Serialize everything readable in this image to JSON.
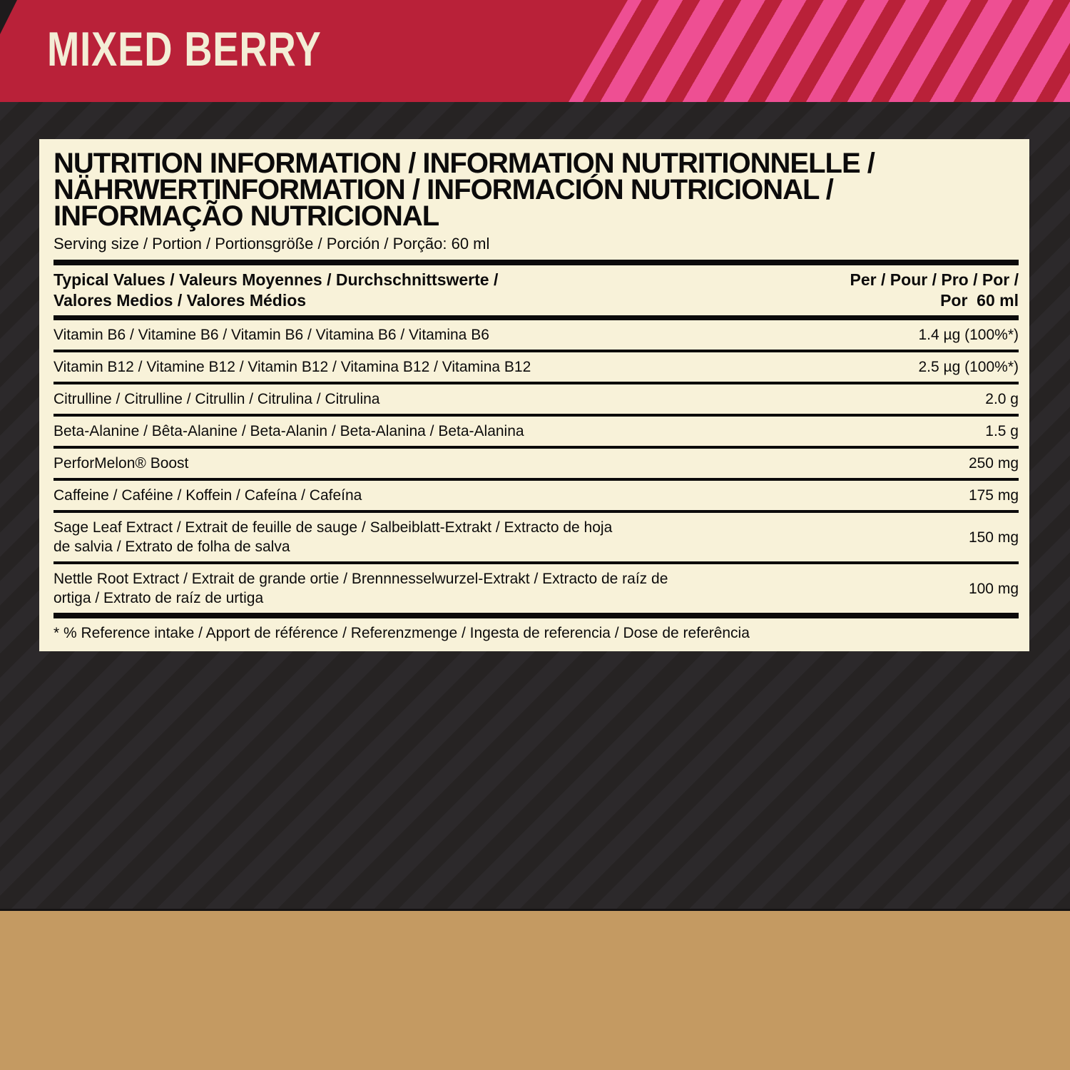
{
  "banner": {
    "flavor": "MIXED BERRY"
  },
  "colors": {
    "banner_red": "#b92139",
    "stripe_pink": "#ee4f93",
    "panel_cream": "#f8f2d9",
    "background_dark": "#262323",
    "bottom_gold": "#c49a62",
    "text_black": "#0c0b0b",
    "flavor_text_cream": "#f3edd6"
  },
  "panel": {
    "title_lines": [
      "NUTRITION INFORMATION / INFORMATION NUTRITIONNELLE /",
      "NÄHRWERTINFORMATION / INFORMACIÓN NUTRICIONAL /",
      "INFORMAÇÃO NUTRICIONAL"
    ],
    "serving_line": "Serving size / Portion / Portionsgröße / Porción / Porção: 60 ml",
    "table": {
      "header": {
        "left": "Typical Values / Valeurs Moyennes / Durchschnittswerte /\nValores Medios / Valores Médios",
        "right": "Per / Pour / Pro / Por /\nPor  60 ml"
      },
      "rows": [
        {
          "label": "Vitamin B6 / Vitamine B6 / Vitamin B6 / Vitamina B6 / Vitamina B6",
          "value": "1.4 µg (100%*)"
        },
        {
          "label": "Vitamin B12 / Vitamine B12 / Vitamin B12 / Vitamina B12 / Vitamina B12",
          "value": "2.5 µg (100%*)"
        },
        {
          "label": "Citrulline / Citrulline / Citrullin / Citrulina / Citrulina",
          "value": "2.0 g"
        },
        {
          "label": "Beta-Alanine / Bêta-Alanine / Beta-Alanin / Beta-Alanina / Beta-Alanina",
          "value": "1.5 g"
        },
        {
          "label": "PerforMelon® Boost",
          "value": "250 mg"
        },
        {
          "label": "Caffeine / Caféine / Koffein / Cafeína / Cafeína",
          "value": "175 mg"
        },
        {
          "label": "Sage Leaf Extract / Extrait de feuille de sauge / Salbeiblatt-Extrakt / Extracto de hoja\nde salvia / Extrato de folha de salva",
          "value": "150 mg"
        },
        {
          "label": "Nettle Root Extract / Extrait de grande ortie / Brennnesselwurzel-Extrakt / Extracto de raíz de\nortiga / Extrato de raíz de urtiga",
          "value": "100 mg"
        }
      ],
      "footnote": "* % Reference intake / Apport de référence / Referenzmenge / Ingesta de referencia / Dose de referência"
    }
  }
}
